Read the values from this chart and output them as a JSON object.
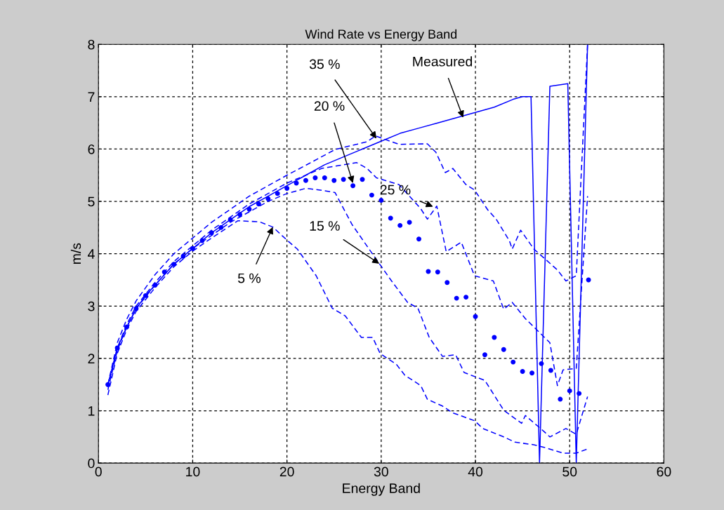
{
  "chart_data": {
    "type": "line",
    "title": "Wind Rate vs Energy Band",
    "xlabel": "Energy Band",
    "ylabel": "m/s",
    "xlim": [
      0,
      60
    ],
    "xticks": [
      0,
      10,
      20,
      30,
      40,
      50,
      60
    ],
    "ylim": [
      0,
      8
    ],
    "yticks": [
      0,
      1,
      2,
      3,
      4,
      5,
      6,
      7,
      8
    ],
    "grid": true,
    "series": [
      {
        "line_style": "solid",
        "color": "#0000ff",
        "x": [
          1,
          2,
          3,
          4,
          5,
          6,
          7,
          8,
          9,
          10,
          12,
          14,
          16,
          18,
          20,
          22,
          24,
          26,
          28,
          30,
          32,
          34,
          36,
          38,
          40,
          42,
          44,
          45,
          45.9,
          46.8,
          47.9,
          49.8,
          50.7,
          51.9
        ],
        "values": [
          1.5,
          2.2,
          2.6,
          2.95,
          3.2,
          3.4,
          3.6,
          3.8,
          3.95,
          4.1,
          4.4,
          4.65,
          4.9,
          5.1,
          5.3,
          5.5,
          5.7,
          5.85,
          6.0,
          6.15,
          6.3,
          6.4,
          6.5,
          6.6,
          6.7,
          6.8,
          6.95,
          7.0,
          7.0,
          0,
          7.2,
          7.25,
          0,
          8
        ]
      },
      {
        "type": "scatter",
        "marker": "circle",
        "color": "#0000ff",
        "x": [
          1,
          2,
          3,
          4,
          5,
          6,
          7,
          8,
          9,
          10,
          11,
          12,
          13,
          14,
          15,
          16,
          17,
          18,
          19,
          20,
          21,
          22,
          23,
          24,
          25,
          26,
          27,
          28,
          29,
          30,
          31,
          32,
          33,
          34,
          35,
          36,
          37,
          38,
          39,
          40,
          41,
          42,
          43,
          44,
          45,
          46,
          47,
          48,
          49,
          50,
          51,
          52
        ],
        "values": [
          1.5,
          2.2,
          2.6,
          2.95,
          3.2,
          3.4,
          3.65,
          3.8,
          3.95,
          4.1,
          4.25,
          4.4,
          4.5,
          4.65,
          4.75,
          4.85,
          4.95,
          5.05,
          5.15,
          5.25,
          5.35,
          5.4,
          5.45,
          5.45,
          5.4,
          5.42,
          5.3,
          5.42,
          5.12,
          5.02,
          4.68,
          4.54,
          4.6,
          4.28,
          3.66,
          3.65,
          3.45,
          3.15,
          3.17,
          2.8,
          2.07,
          2.4,
          2.17,
          1.93,
          1.75,
          1.72,
          1.9,
          1.77,
          1.22,
          1.38,
          1.33,
          3.5
        ]
      },
      {
        "line_style": "dashed",
        "color": "#0000ff",
        "x": [
          1,
          2,
          3,
          4,
          6,
          8,
          10,
          12,
          14.8,
          17.1,
          18.5,
          20.0,
          21.1,
          23.1,
          24.8,
          26.2,
          27.9,
          29.1,
          29.9,
          31.6,
          32.5,
          34.2,
          34.9,
          36.5,
          37.6,
          39.9,
          40.8,
          43.0,
          44.2,
          46.2,
          47.3,
          49.3,
          50.7,
          51.9
        ],
        "values": [
          1.3,
          2.1,
          2.55,
          2.9,
          3.35,
          3.75,
          4.05,
          4.3,
          4.63,
          4.61,
          4.51,
          4.26,
          4.09,
          3.58,
          2.96,
          2.81,
          2.4,
          2.4,
          2.09,
          1.89,
          1.68,
          1.48,
          1.22,
          1.09,
          0.96,
          0.81,
          0.66,
          0.5,
          0.4,
          0.35,
          0.3,
          0.19,
          0.19,
          0.27
        ]
      },
      {
        "line_style": "dashed",
        "color": "#0000ff",
        "x": [
          1,
          2,
          3,
          4,
          6,
          8,
          10,
          12,
          14,
          16,
          18,
          20,
          22,
          23.4,
          25.1,
          26.9,
          29.1,
          31.1,
          32.8,
          33.9,
          35.1,
          36.5,
          37.9,
          38.8,
          41.0,
          43.0,
          44.9,
          45.3,
          47.3,
          47.9,
          49.6,
          50.7,
          51.9
        ],
        "values": [
          1.4,
          2.15,
          2.6,
          2.95,
          3.4,
          3.8,
          4.1,
          4.35,
          4.6,
          4.8,
          5.0,
          5.15,
          5.25,
          5.22,
          5.17,
          4.56,
          3.99,
          3.48,
          3.07,
          2.96,
          2.4,
          2.04,
          2.07,
          1.73,
          1.58,
          1.01,
          0.76,
          0.91,
          0.6,
          0.5,
          0.66,
          0.55,
          1.27
        ]
      },
      {
        "line_style": "dashed",
        "color": "#0000ff",
        "x": [
          1,
          2,
          3,
          4,
          6,
          8,
          10,
          12,
          14,
          16,
          18,
          20,
          22,
          23.7,
          27.4,
          28.5,
          29.5,
          31.9,
          34.2,
          34.9,
          35.9,
          36.9,
          38.5,
          39.9,
          41.9,
          43.0,
          43.9,
          45.3,
          47.9,
          48.7,
          49.3,
          50.7,
          51.9
        ],
        "values": [
          1.45,
          2.2,
          2.65,
          3.0,
          3.45,
          3.85,
          4.15,
          4.45,
          4.7,
          4.95,
          5.15,
          5.35,
          5.5,
          5.63,
          5.74,
          5.63,
          5.45,
          5.32,
          4.86,
          4.66,
          4.91,
          4.04,
          4.22,
          3.58,
          3.48,
          2.94,
          3.07,
          2.76,
          2.3,
          1.48,
          1.78,
          1.81,
          5.1
        ]
      },
      {
        "line_style": "dashed",
        "color": "#0000ff",
        "x": [
          1,
          2,
          3,
          4,
          6,
          8,
          10,
          12,
          14,
          16,
          18,
          20,
          21.9,
          25.1,
          28.5,
          29.4,
          31.9,
          34.9,
          35.8,
          36.8,
          37.6,
          39.0,
          39.9,
          41.3,
          42.2,
          43.6,
          43.9,
          44.8,
          46.2,
          48.7,
          49.6,
          50.7,
          51.9
        ],
        "values": [
          1.5,
          2.3,
          2.75,
          3.1,
          3.6,
          4.0,
          4.3,
          4.6,
          4.85,
          5.1,
          5.3,
          5.5,
          5.68,
          5.99,
          6.14,
          6.25,
          6.09,
          6.1,
          5.94,
          5.55,
          5.63,
          5.32,
          5.22,
          4.84,
          4.66,
          4.25,
          4.09,
          4.45,
          4.09,
          3.69,
          3.48,
          3.58,
          8
        ]
      }
    ],
    "annotations": [
      {
        "text": "35 %",
        "x": 29.5,
        "y": 6.2
      },
      {
        "text": "20 %",
        "x": 27,
        "y": 5.35
      },
      {
        "text": "Measured",
        "x": 38.7,
        "y": 6.6
      },
      {
        "text": "25 %",
        "x": 35.5,
        "y": 4.9
      },
      {
        "text": "15 %",
        "x": 29.8,
        "y": 3.81
      },
      {
        "text": "5 %",
        "x": 18.5,
        "y": 4.51
      }
    ]
  }
}
